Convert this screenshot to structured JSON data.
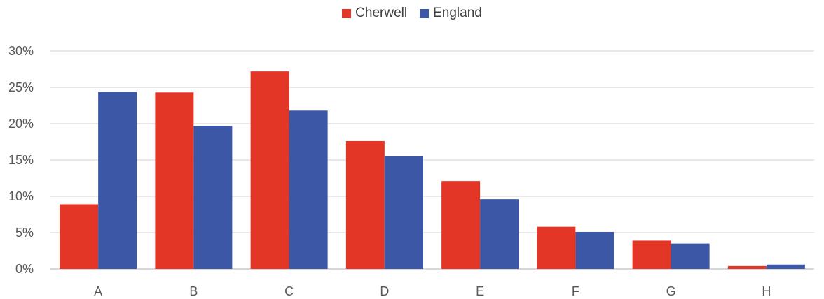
{
  "chart_data": {
    "type": "bar",
    "title": "",
    "xlabel": "",
    "ylabel": "",
    "categories": [
      "A",
      "B",
      "C",
      "D",
      "E",
      "F",
      "G",
      "H"
    ],
    "series": [
      {
        "name": "Cherwell",
        "color": "#e33626",
        "values": [
          8.9,
          24.3,
          27.2,
          17.6,
          12.1,
          5.8,
          3.9,
          0.4
        ]
      },
      {
        "name": "England",
        "color": "#3c57a5",
        "values": [
          24.4,
          19.7,
          21.8,
          15.5,
          9.6,
          5.1,
          3.5,
          0.6
        ]
      }
    ],
    "ylim": [
      0,
      30
    ],
    "yticks": [
      0,
      5,
      10,
      15,
      20,
      25,
      30
    ],
    "ytick_labels": [
      "0%",
      "5%",
      "10%",
      "15%",
      "20%",
      "25%",
      "30%"
    ],
    "grid": true,
    "legend_position": "top-center"
  }
}
